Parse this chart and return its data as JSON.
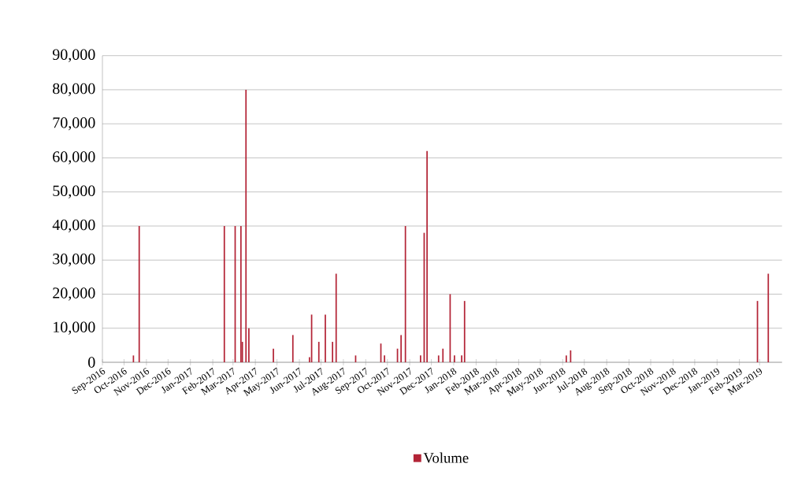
{
  "chart_data": {
    "type": "bar",
    "x": [
      "2016-10-14",
      "2016-10-22",
      "2017-02-17",
      "2017-03-04",
      "2017-03-12",
      "2017-03-14",
      "2017-03-19",
      "2017-03-23",
      "2017-04-26",
      "2017-05-23",
      "2017-06-15",
      "2017-06-18",
      "2017-06-28",
      "2017-07-07",
      "2017-07-17",
      "2017-07-22",
      "2017-08-18",
      "2017-09-22",
      "2017-09-27",
      "2017-10-15",
      "2017-10-20",
      "2017-10-26",
      "2017-11-16",
      "2017-11-21",
      "2017-11-25",
      "2017-12-11",
      "2017-12-17",
      "2017-12-27",
      "2018-01-02",
      "2018-01-12",
      "2018-01-16",
      "2018-06-06",
      "2018-06-12",
      "2019-02-26",
      "2019-03-13"
    ],
    "series": [
      {
        "name": "Volume",
        "color": "#b32436",
        "values": [
          2000,
          40000,
          40000,
          40000,
          40000,
          6000,
          80000,
          10000,
          4000,
          8000,
          1500,
          14000,
          6000,
          14000,
          6000,
          26000,
          2000,
          5500,
          2000,
          4000,
          8000,
          40000,
          2000,
          38000,
          62000,
          2000,
          4000,
          20000,
          2000,
          2000,
          18000,
          2000,
          3500,
          18000,
          26000
        ]
      }
    ],
    "xlim": [
      "2016-09-01",
      "2019-04-01"
    ],
    "xticks": [
      {
        "value": "2016-09-01",
        "label": "Sep-2016"
      },
      {
        "value": "2016-10-01",
        "label": "Oct-2016"
      },
      {
        "value": "2016-11-01",
        "label": "Nov-2016"
      },
      {
        "value": "2016-12-01",
        "label": "Dec-2016"
      },
      {
        "value": "2017-01-01",
        "label": "Jan-2017"
      },
      {
        "value": "2017-02-01",
        "label": "Feb-2017"
      },
      {
        "value": "2017-03-01",
        "label": "Mar-2017"
      },
      {
        "value": "2017-04-01",
        "label": "Apr-2017"
      },
      {
        "value": "2017-05-01",
        "label": "May-2017"
      },
      {
        "value": "2017-06-01",
        "label": "Jun-2017"
      },
      {
        "value": "2017-07-01",
        "label": "Jul-2017"
      },
      {
        "value": "2017-08-01",
        "label": "Aug-2017"
      },
      {
        "value": "2017-09-01",
        "label": "Sep-2017"
      },
      {
        "value": "2017-10-01",
        "label": "Oct-2017"
      },
      {
        "value": "2017-11-01",
        "label": "Nov-2017"
      },
      {
        "value": "2017-12-01",
        "label": "Dec-2017"
      },
      {
        "value": "2018-01-01",
        "label": "Jan-2018"
      },
      {
        "value": "2018-02-01",
        "label": "Feb-2018"
      },
      {
        "value": "2018-03-01",
        "label": "Mar-2018"
      },
      {
        "value": "2018-04-01",
        "label": "Apr-2018"
      },
      {
        "value": "2018-05-01",
        "label": "May-2018"
      },
      {
        "value": "2018-06-01",
        "label": "Jun-2018"
      },
      {
        "value": "2018-07-01",
        "label": "Jul-2018"
      },
      {
        "value": "2018-08-01",
        "label": "Aug-2018"
      },
      {
        "value": "2018-09-01",
        "label": "Sep-2018"
      },
      {
        "value": "2018-10-01",
        "label": "Oct-2018"
      },
      {
        "value": "2018-11-01",
        "label": "Nov-2018"
      },
      {
        "value": "2018-12-01",
        "label": "Dec-2018"
      },
      {
        "value": "2019-01-01",
        "label": "Jan-2019"
      },
      {
        "value": "2019-02-01",
        "label": "Feb-2019"
      },
      {
        "value": "2019-03-01",
        "label": "Mar-2019"
      }
    ],
    "ylim": [
      0,
      90000
    ],
    "yticks": [
      0,
      {
        "value": 10000,
        "label": "10,000"
      },
      {
        "value": 20000,
        "label": "20,000"
      },
      {
        "value": 30000,
        "label": "30,000"
      },
      {
        "value": 40000,
        "label": "40,000"
      },
      {
        "value": 50000,
        "label": "50,000"
      },
      {
        "value": 60000,
        "label": "60,000"
      },
      {
        "value": 70000,
        "label": "70,000"
      },
      {
        "value": 80000,
        "label": "80,000"
      },
      {
        "value": 90000,
        "label": "90,000"
      }
    ],
    "grid": "y",
    "legend": "bottom"
  }
}
